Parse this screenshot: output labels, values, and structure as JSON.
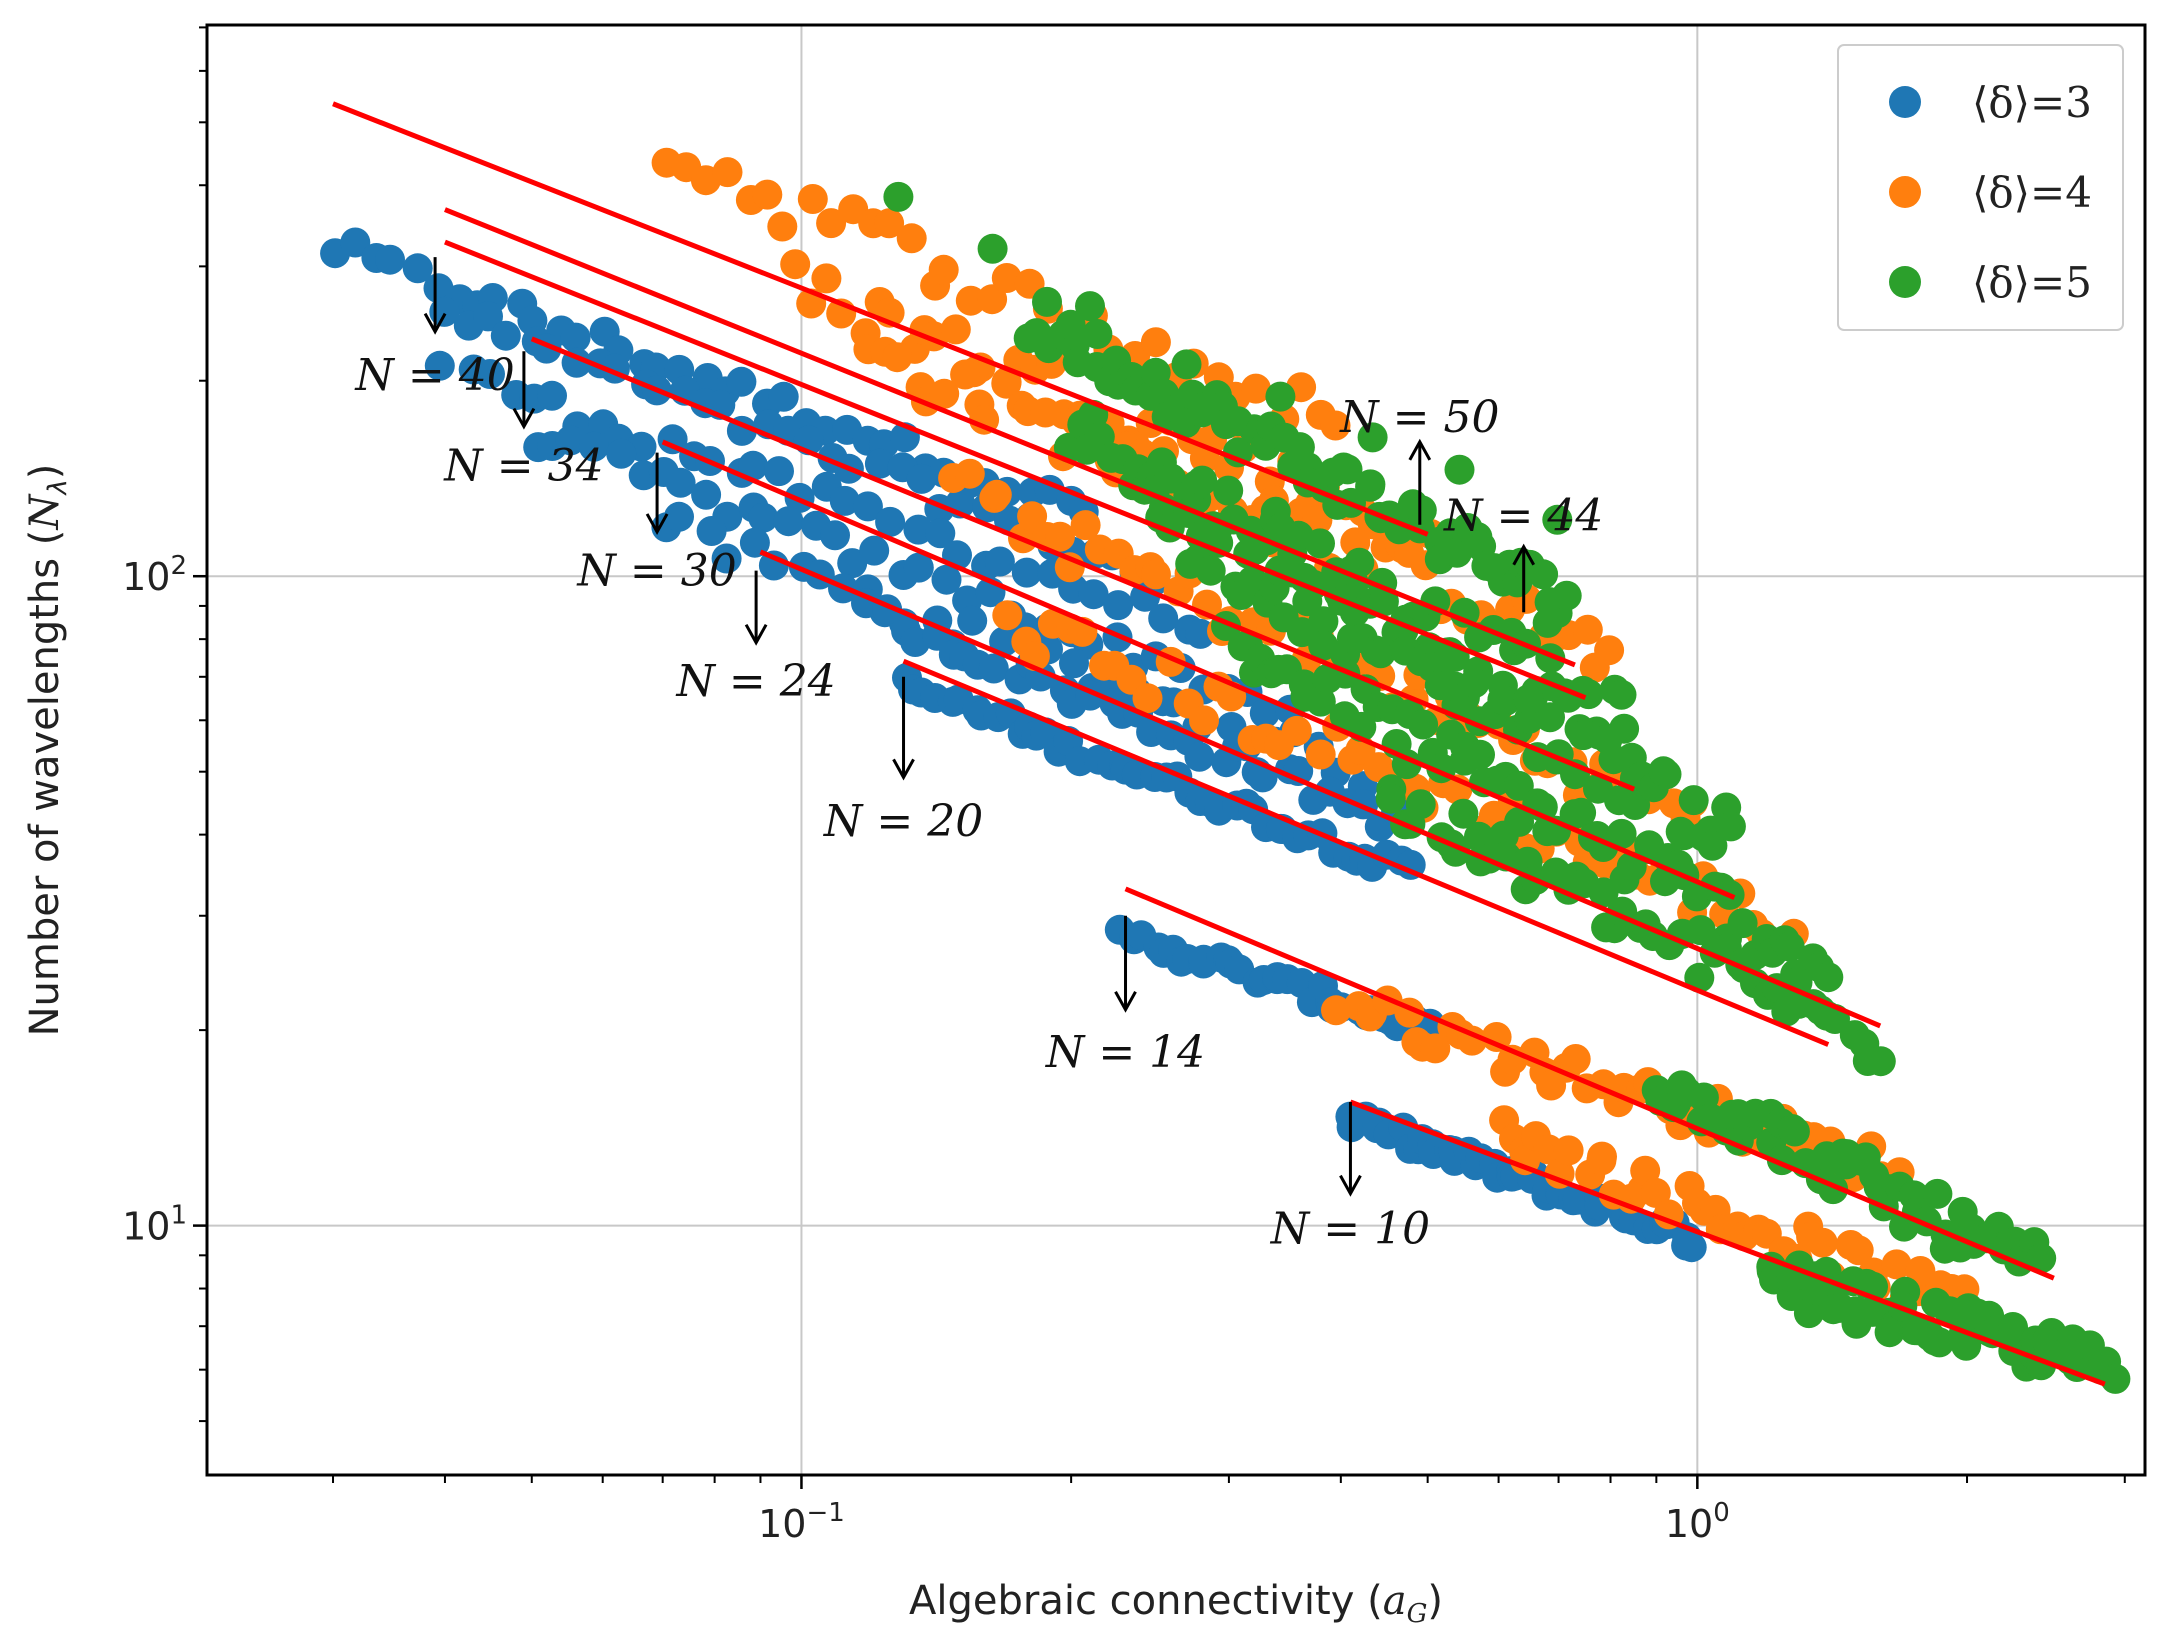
{
  "chart_data": {
    "type": "scatter",
    "title": "",
    "xlabel": "Algebraic connectivity (a_G)",
    "ylabel": "Number of wavelengths (N_λ)",
    "xscale": "log",
    "yscale": "log",
    "xlim": [
      0.0217,
      3.16
    ],
    "ylim": [
      4.13,
      706
    ],
    "grid": true,
    "legend_position": "top-right",
    "x_ticks": [
      {
        "value": 0.1,
        "base": "10",
        "exp": "−1"
      },
      {
        "value": 1.0,
        "base": "10",
        "exp": "0"
      }
    ],
    "y_ticks": [
      {
        "value": 10,
        "base": "10",
        "exp": "1"
      },
      {
        "value": 100,
        "base": "10",
        "exp": "2"
      }
    ],
    "series": [
      {
        "name": "⟨δ⟩=3",
        "color": "#1f77b4"
      },
      {
        "name": "⟨δ⟩=4",
        "color": "#ff7f0e"
      },
      {
        "name": "⟨δ⟩=5",
        "color": "#2ca02c"
      }
    ],
    "fit_lines": [
      {
        "N": 50,
        "x": [
          0.03,
          0.5
        ],
        "y": [
          534,
          116
        ],
        "color": "#ff0000"
      },
      {
        "N": 44,
        "x": [
          0.04,
          0.73
        ],
        "y": [
          367,
          73
        ],
        "color": "#ff0000"
      },
      {
        "N": 40,
        "x": [
          0.04,
          0.75
        ],
        "y": [
          327,
          65
        ],
        "color": "#ff0000"
      },
      {
        "N": 34,
        "x": [
          0.05,
          0.85
        ],
        "y": [
          232,
          47
        ],
        "color": "#ff0000"
      },
      {
        "N": 30,
        "x": [
          0.07,
          1.1
        ],
        "y": [
          161,
          32
        ],
        "color": "#ff0000"
      },
      {
        "N": 24,
        "x": [
          0.09,
          1.6
        ],
        "y": [
          109,
          20.3
        ],
        "color": "#ff0000"
      },
      {
        "N": 20,
        "x": [
          0.13,
          1.4
        ],
        "y": [
          74,
          19
        ],
        "color": "#ff0000"
      },
      {
        "N": 14,
        "x": [
          0.23,
          2.5
        ],
        "y": [
          33,
          8.3
        ],
        "color": "#ff0000"
      },
      {
        "N": 10,
        "x": [
          0.41,
          2.85
        ],
        "y": [
          15.5,
          5.7
        ],
        "color": "#ff0000"
      }
    ],
    "annotations": [
      {
        "text": "N = 40",
        "x": 0.039,
        "y": 204,
        "arrow_from_y": 310,
        "arrow_to_y": 238
      },
      {
        "text": "N = 34",
        "x": 0.049,
        "y": 148,
        "arrow_from_y": 222,
        "arrow_to_y": 170
      },
      {
        "text": "N = 30",
        "x": 0.069,
        "y": 102,
        "arrow_from_y": 155,
        "arrow_to_y": 117
      },
      {
        "text": "N = 24",
        "x": 0.089,
        "y": 69,
        "arrow_from_y": 102,
        "arrow_to_y": 79
      },
      {
        "text": "N = 20",
        "x": 0.13,
        "y": 42,
        "arrow_from_y": 70,
        "arrow_to_y": 49
      },
      {
        "text": "N = 14",
        "x": 0.23,
        "y": 18.5,
        "arrow_from_y": 30,
        "arrow_to_y": 21.5
      },
      {
        "text": "N = 10",
        "x": 0.41,
        "y": 9.9,
        "arrow_from_y": 15.5,
        "arrow_to_y": 11.2
      },
      {
        "text": "N = 50",
        "x": 0.49,
        "y": 176,
        "arrow_from_y": 120,
        "arrow_to_y": 161
      },
      {
        "text": "N = 44",
        "x": 0.64,
        "y": 124,
        "arrow_from_y": 88,
        "arrow_to_y": 111
      }
    ],
    "scatter_clusters": [
      {
        "series": 0,
        "x0": 0.03,
        "x1": 0.21,
        "y0": 320,
        "y1": 125,
        "n": 38,
        "jit": 0.02
      },
      {
        "series": 0,
        "x0": 0.04,
        "x1": 0.25,
        "y0": 255,
        "y1": 100,
        "n": 34,
        "jit": 0.02
      },
      {
        "series": 0,
        "x0": 0.04,
        "x1": 0.3,
        "y0": 210,
        "y1": 80,
        "n": 36,
        "jit": 0.02
      },
      {
        "series": 0,
        "x0": 0.05,
        "x1": 0.35,
        "y0": 165,
        "y1": 62,
        "n": 36,
        "jit": 0.02
      },
      {
        "series": 0,
        "x0": 0.07,
        "x1": 0.42,
        "y0": 120,
        "y1": 50,
        "n": 32,
        "jit": 0.025
      },
      {
        "series": 0,
        "x0": 0.12,
        "x1": 0.46,
        "y0": 88,
        "y1": 42,
        "n": 34,
        "jit": 0.02
      },
      {
        "series": 0,
        "x0": 0.13,
        "x1": 0.48,
        "y0": 68,
        "y1": 35,
        "n": 46,
        "jit": 0.015
      },
      {
        "series": 0,
        "x0": 0.23,
        "x1": 0.5,
        "y0": 28,
        "y1": 20,
        "n": 34,
        "jit": 0.015
      },
      {
        "series": 0,
        "x0": 0.41,
        "x1": 1.0,
        "y0": 14.5,
        "y1": 9.5,
        "n": 46,
        "jit": 0.015
      },
      {
        "series": 1,
        "x0": 0.07,
        "x1": 0.4,
        "y0": 450,
        "y1": 170,
        "n": 34,
        "jit": 0.04
      },
      {
        "series": 1,
        "x0": 0.1,
        "x1": 0.55,
        "y0": 280,
        "y1": 110,
        "n": 44,
        "jit": 0.04
      },
      {
        "series": 1,
        "x0": 0.12,
        "x1": 0.8,
        "y0": 220,
        "y1": 75,
        "n": 52,
        "jit": 0.04
      },
      {
        "series": 1,
        "x0": 0.15,
        "x1": 1.0,
        "y0": 135,
        "y1": 42,
        "n": 52,
        "jit": 0.04
      },
      {
        "series": 1,
        "x0": 0.17,
        "x1": 1.3,
        "y0": 85,
        "y1": 28,
        "n": 50,
        "jit": 0.04
      },
      {
        "series": 1,
        "x0": 0.4,
        "x1": 1.7,
        "y0": 22,
        "y1": 12,
        "n": 46,
        "jit": 0.03
      },
      {
        "series": 1,
        "x0": 0.6,
        "x1": 2.0,
        "y0": 14,
        "y1": 7.5,
        "n": 44,
        "jit": 0.03
      },
      {
        "series": 2,
        "x0": 0.13,
        "x1": 0.7,
        "y0": 380,
        "y1": 120,
        "n": 8,
        "jit": 0.05
      },
      {
        "series": 2,
        "x0": 0.18,
        "x1": 0.72,
        "y0": 250,
        "y1": 90,
        "n": 72,
        "jit": 0.04
      },
      {
        "series": 2,
        "x0": 0.2,
        "x1": 0.85,
        "y0": 170,
        "y1": 58,
        "n": 72,
        "jit": 0.045
      },
      {
        "series": 2,
        "x0": 0.25,
        "x1": 1.1,
        "y0": 120,
        "y1": 40,
        "n": 72,
        "jit": 0.045
      },
      {
        "series": 2,
        "x0": 0.3,
        "x1": 1.4,
        "y0": 80,
        "y1": 25,
        "n": 66,
        "jit": 0.045
      },
      {
        "series": 2,
        "x0": 0.45,
        "x1": 1.6,
        "y0": 45,
        "y1": 19,
        "n": 52,
        "jit": 0.04
      },
      {
        "series": 2,
        "x0": 0.9,
        "x1": 2.4,
        "y0": 17,
        "y1": 8.5,
        "n": 54,
        "jit": 0.04
      },
      {
        "series": 2,
        "x0": 1.2,
        "x1": 2.9,
        "y0": 8.3,
        "y1": 6.0,
        "n": 60,
        "jit": 0.035
      }
    ]
  }
}
